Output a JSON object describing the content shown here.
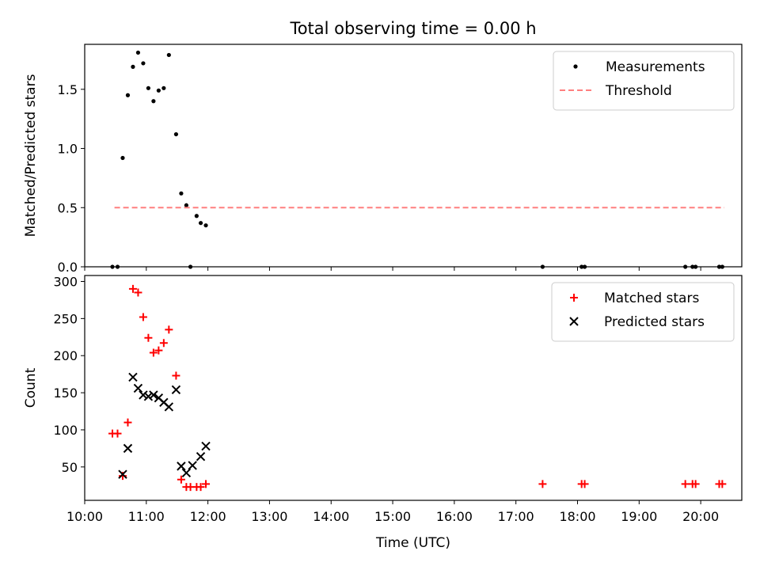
{
  "chart_data": [
    {
      "type": "scatter",
      "title": "Total observing time = 0.00 h",
      "xlabel": "",
      "ylabel": "Matched/Predicted stars",
      "ylim": [
        0,
        1.88
      ],
      "x_tick_values": [
        "10:00",
        "11:00",
        "12:00",
        "13:00",
        "14:00",
        "15:00",
        "16:00",
        "17:00",
        "18:00",
        "19:00",
        "20:00"
      ],
      "x_tick_labels_visible": false,
      "y_ticks": [
        "0.0",
        "0.5",
        "1.0",
        "1.5"
      ],
      "legend_position": "top-right",
      "series": [
        {
          "name": "Measurements",
          "marker": "dot",
          "color": "#000000",
          "points": [
            [
              "10:27",
              0.0
            ],
            [
              "10:32",
              0.0
            ],
            [
              "10:37",
              0.92
            ],
            [
              "10:42",
              1.45
            ],
            [
              "10:47",
              1.69
            ],
            [
              "10:52",
              1.81
            ],
            [
              "10:57",
              1.72
            ],
            [
              "11:02",
              1.51
            ],
            [
              "11:07",
              1.4
            ],
            [
              "11:12",
              1.49
            ],
            [
              "11:17",
              1.51
            ],
            [
              "11:22",
              1.79
            ],
            [
              "11:29",
              1.12
            ],
            [
              "11:34",
              0.62
            ],
            [
              "11:39",
              0.52
            ],
            [
              "11:43",
              0.0
            ],
            [
              "11:49",
              0.43
            ],
            [
              "11:53",
              0.37
            ],
            [
              "11:58",
              0.35
            ],
            [
              "17:26",
              0.0
            ],
            [
              "18:04",
              0.0
            ],
            [
              "18:07",
              0.0
            ],
            [
              "19:45",
              0.0
            ],
            [
              "19:52",
              0.0
            ],
            [
              "19:55",
              0.0
            ],
            [
              "20:18",
              0.0
            ],
            [
              "20:21",
              0.0
            ]
          ]
        },
        {
          "name": "Threshold",
          "line_style": "dashed",
          "color": "#ff7f7f",
          "points": [
            [
              "10:29",
              0.5
            ],
            [
              "20:23",
              0.5
            ]
          ]
        }
      ]
    },
    {
      "type": "scatter",
      "title": "",
      "xlabel": "Time (UTC)",
      "ylabel": "Count",
      "ylim": [
        5,
        308
      ],
      "x_tick_labels": [
        "10:00",
        "11:00",
        "12:00",
        "13:00",
        "14:00",
        "15:00",
        "16:00",
        "17:00",
        "18:00",
        "19:00",
        "20:00"
      ],
      "y_ticks": [
        "50",
        "100",
        "150",
        "200",
        "250",
        "300"
      ],
      "legend_position": "top-right",
      "series": [
        {
          "name": "Matched stars",
          "marker": "plus",
          "color": "#ff0000",
          "points": [
            [
              "10:27",
              95
            ],
            [
              "10:32",
              95
            ],
            [
              "10:37",
              38
            ],
            [
              "10:42",
              110
            ],
            [
              "10:47",
              290
            ],
            [
              "10:52",
              285
            ],
            [
              "10:57",
              252
            ],
            [
              "11:02",
              224
            ],
            [
              "11:07",
              204
            ],
            [
              "11:12",
              207
            ],
            [
              "11:17",
              217
            ],
            [
              "11:22",
              235
            ],
            [
              "11:29",
              173
            ],
            [
              "11:34",
              33
            ],
            [
              "11:39",
              23
            ],
            [
              "11:43",
              23
            ],
            [
              "11:49",
              23
            ],
            [
              "11:53",
              23
            ],
            [
              "11:58",
              27
            ],
            [
              "17:26",
              27
            ],
            [
              "18:04",
              27
            ],
            [
              "18:07",
              27
            ],
            [
              "19:45",
              27
            ],
            [
              "19:52",
              27
            ],
            [
              "19:55",
              27
            ],
            [
              "20:18",
              27
            ],
            [
              "20:21",
              27
            ]
          ]
        },
        {
          "name": "Predicted stars",
          "marker": "x",
          "color": "#000000",
          "points": [
            [
              "10:37",
              40
            ],
            [
              "10:42",
              75
            ],
            [
              "10:47",
              171
            ],
            [
              "10:52",
              156
            ],
            [
              "10:57",
              147
            ],
            [
              "11:02",
              145
            ],
            [
              "11:07",
              147
            ],
            [
              "11:12",
              143
            ],
            [
              "11:17",
              137
            ],
            [
              "11:22",
              131
            ],
            [
              "11:29",
              154
            ],
            [
              "11:34",
              51
            ],
            [
              "11:39",
              42
            ],
            [
              "11:45",
              52
            ],
            [
              "11:53",
              64
            ],
            [
              "11:58",
              78
            ]
          ]
        }
      ]
    }
  ]
}
